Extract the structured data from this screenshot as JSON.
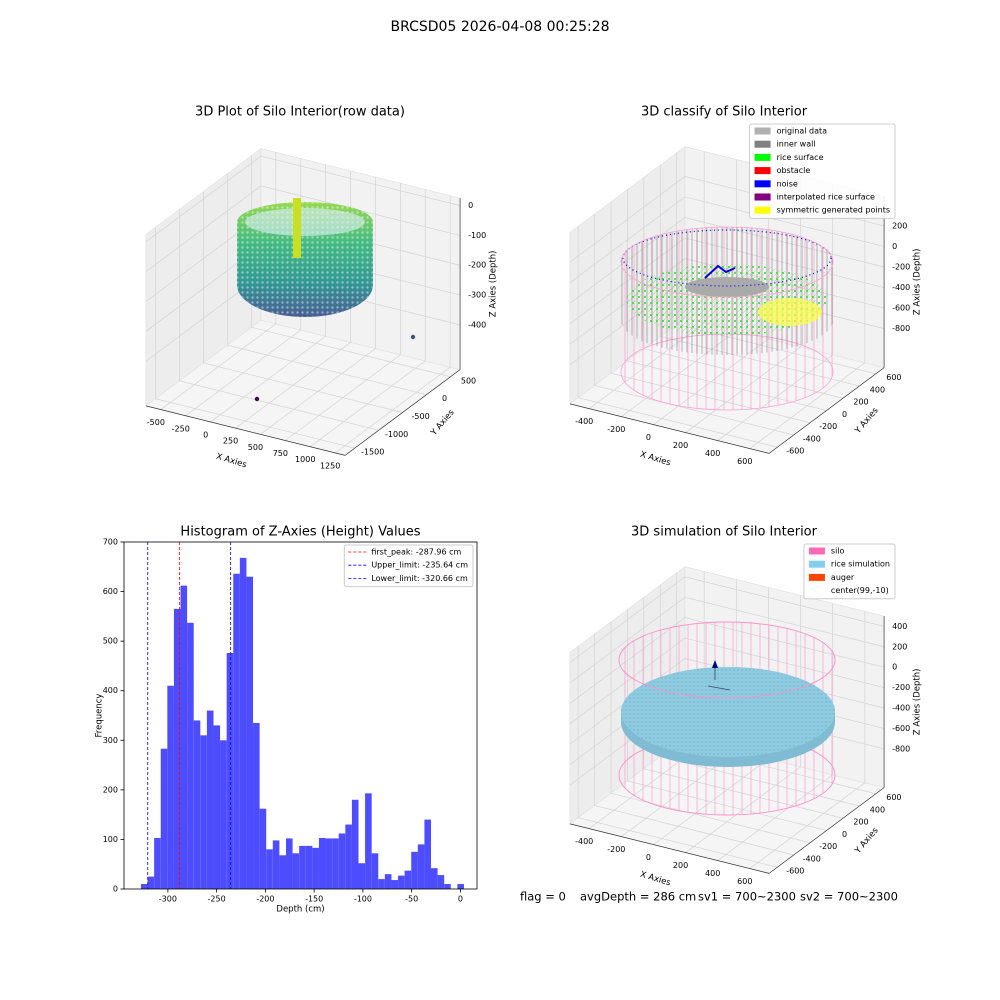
{
  "title": "BRCSD05 2026-04-08 00:25:28",
  "chart_data": [
    {
      "type": "scatter3d",
      "title": "3D Plot of Silo Interior(row data)",
      "xlabel": "X Axies",
      "ylabel": "Y Axies",
      "zlabel": "Z Axies (Depth)",
      "xlim": [
        -650,
        1350
      ],
      "xticks": [
        -500,
        -250,
        0,
        250,
        500,
        750,
        1000,
        1250
      ],
      "ylim": [
        -1700,
        700
      ],
      "yticks": [
        -1500,
        -1000,
        -500,
        0,
        500
      ],
      "zlim": [
        -550,
        25
      ],
      "zticks": [
        -400,
        -300,
        -200,
        -100,
        0
      ]
    },
    {
      "type": "scatter3d",
      "title": "3D classify of Silo Interior",
      "xlabel": "X Axies",
      "ylabel": "Y Axies",
      "zlabel": "Z Axies (Depth)",
      "xlim": [
        -520,
        720
      ],
      "xticks": [
        -400,
        -200,
        0,
        200,
        400,
        600
      ],
      "ylim": [
        -700,
        700
      ],
      "yticks": [
        -600,
        -400,
        -200,
        0,
        200,
        400,
        600
      ],
      "zlim": [
        -1180,
        490
      ],
      "zticks": [
        -800,
        -600,
        -400,
        -200,
        0,
        200
      ],
      "legend": {
        "loc": "upper right",
        "items": [
          {
            "name": "original data",
            "color": "#b0b0b0"
          },
          {
            "name": "inner wall",
            "color": "#808080"
          },
          {
            "name": "rice surface",
            "color": "#00ff00"
          },
          {
            "name": "obstacle",
            "color": "#ff0000"
          },
          {
            "name": "noise",
            "color": "#0000ff"
          },
          {
            "name": "interpolated rice surface",
            "color": "#800080"
          },
          {
            "name": "symmetric generated points",
            "color": "#ffff00"
          }
        ]
      }
    },
    {
      "type": "histogram",
      "title": "Histogram of Z-Axies (Height) Values",
      "xlabel": "Depth (cm)",
      "ylabel": "Frequency",
      "color": "#4d4dff",
      "bins": [
        -327.6,
        -320.84,
        -314.08,
        -307.32,
        -300.56,
        -293.8,
        -287.04,
        -280.28,
        -273.52,
        -266.76,
        -260.0,
        -253.24,
        -246.48,
        -239.72,
        -232.96,
        -226.2,
        -219.44,
        -212.68,
        -205.92,
        -199.16,
        -192.4,
        -185.64,
        -178.88,
        -172.12,
        -165.36,
        -158.6,
        -151.84,
        -145.08,
        -138.32,
        -131.56,
        -124.8,
        -118.04,
        -111.28,
        -104.52,
        -97.76,
        -91.0,
        -84.24,
        -77.48,
        -70.72,
        -63.96,
        -57.2,
        -50.44,
        -43.68,
        -36.92,
        -30.16,
        -23.4,
        -16.64,
        -9.88,
        -3.12,
        3.64
      ],
      "values": [
        10,
        25,
        103,
        283,
        410,
        565,
        612,
        537,
        340,
        310,
        360,
        330,
        300,
        476,
        636,
        668,
        630,
        335,
        162,
        80,
        98,
        68,
        102,
        72,
        87,
        87,
        83,
        103,
        102,
        102,
        112,
        130,
        180,
        52,
        193,
        72,
        20,
        30,
        18,
        27,
        37,
        75,
        90,
        140,
        42,
        28,
        10,
        0,
        10
      ],
      "xlim": [
        -345,
        17
      ],
      "xticks": [
        -300,
        -250,
        -200,
        -150,
        -100,
        -50,
        0
      ],
      "ylim": [
        0,
        700
      ],
      "yticks": [
        0,
        100,
        200,
        300,
        400,
        500,
        600,
        700
      ],
      "vlines": [
        {
          "label": "first_peak: -287.96 cm",
          "value": -287.96,
          "color": "#ff0000"
        },
        {
          "label": "Upper_limit: -235.64 cm",
          "value": -235.64,
          "color": "#0000ff"
        },
        {
          "label": "Lower_limit: -320.66 cm",
          "value": -320.66,
          "color": "#0000ff"
        }
      ],
      "legend": {
        "loc": "upper right"
      }
    },
    {
      "type": "scatter3d",
      "title": "3D simulation of Silo Interior",
      "xlabel": "X Axies",
      "ylabel": "Y Axies",
      "zlabel": "Z Axies (Depth)",
      "xlim": [
        -520,
        720
      ],
      "xticks": [
        -400,
        -200,
        0,
        200,
        400,
        600
      ],
      "ylim": [
        -700,
        700
      ],
      "yticks": [
        -600,
        -400,
        -200,
        0,
        200,
        400,
        600
      ],
      "zlim": [
        -1180,
        500
      ],
      "zticks": [
        -800,
        -600,
        -400,
        -200,
        0,
        200,
        400
      ],
      "legend": {
        "loc": "upper right",
        "items": [
          {
            "name": "silo",
            "color": "#ff69b4"
          },
          {
            "name": "rice simulation",
            "color": "#87ceeb"
          },
          {
            "name": "auger",
            "color": "#ff4500"
          },
          {
            "name": "center(99,-10)",
            "color": "#ffffff"
          }
        ]
      }
    }
  ],
  "footer": [
    "flag = 0",
    "avgDepth = 286 cm",
    "sv1 = 700~2300",
    "sv2 = 700~2300"
  ]
}
